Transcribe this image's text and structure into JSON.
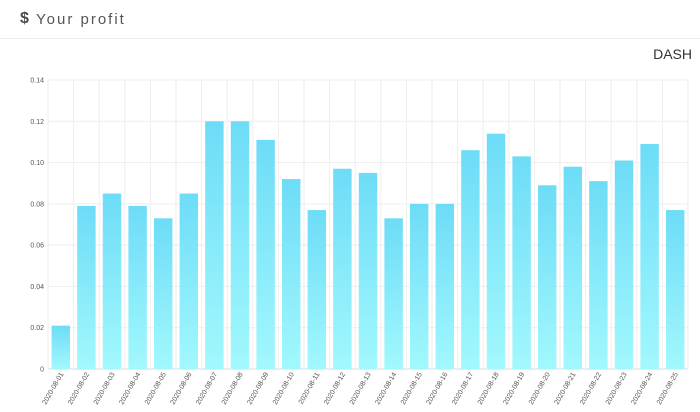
{
  "header": {
    "icon": "dollar-icon",
    "icon_glyph": "$",
    "title": "Your profit"
  },
  "currency_label": "DASH",
  "colors": {
    "bar_top": "#6ddcf7",
    "bar_bottom": "#a2f8fd",
    "grid": "#eeeeee"
  },
  "chart_data": {
    "type": "bar",
    "categories": [
      "2020-08-01",
      "2020-08-02",
      "2020-08-03",
      "2020-08-04",
      "2020-08-05",
      "2020-08-06",
      "2020-08-07",
      "2020-08-08",
      "2020-08-09",
      "2020-08-10",
      "2020-08-11",
      "2020-08-12",
      "2020-08-13",
      "2020-08-14",
      "2020-08-15",
      "2020-08-16",
      "2020-08-17",
      "2020-08-18",
      "2020-08-19",
      "2020-08-20",
      "2020-08-21",
      "2020-08-22",
      "2020-08-23",
      "2020-08-24",
      "2020-08-25"
    ],
    "values": [
      0.021,
      0.079,
      0.085,
      0.079,
      0.073,
      0.085,
      0.12,
      0.12,
      0.111,
      0.092,
      0.077,
      0.097,
      0.095,
      0.073,
      0.08,
      0.08,
      0.106,
      0.114,
      0.103,
      0.089,
      0.098,
      0.091,
      0.101,
      0.109,
      0.077
    ],
    "ylim": [
      0,
      0.14
    ],
    "yticks": [
      "0",
      "0.02",
      "0.04",
      "0.06",
      "0.08",
      "0.10",
      "0.12",
      "0.14"
    ],
    "ytick_values": [
      0,
      0.02,
      0.04,
      0.06,
      0.08,
      0.1,
      0.12,
      0.14
    ],
    "grid": true,
    "legend": "none"
  }
}
